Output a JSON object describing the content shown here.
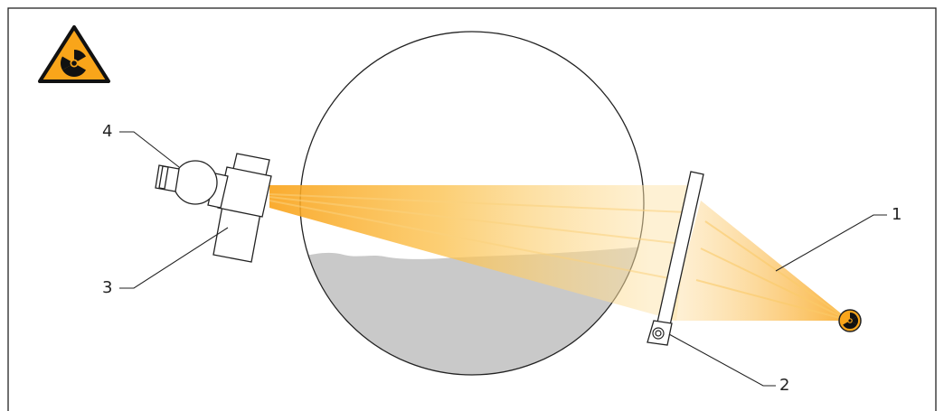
{
  "callouts": {
    "label_1": "1",
    "label_2": "2",
    "label_3": "3",
    "label_4": "4"
  },
  "icons": {
    "warning_sign": "radiation-warning-icon",
    "source": "radiation-source-icon"
  },
  "colors": {
    "beam": "#F9AC1C",
    "warning_fill": "#F9A51A",
    "product_fill": "#C9C9C9",
    "outline": "#222222"
  }
}
